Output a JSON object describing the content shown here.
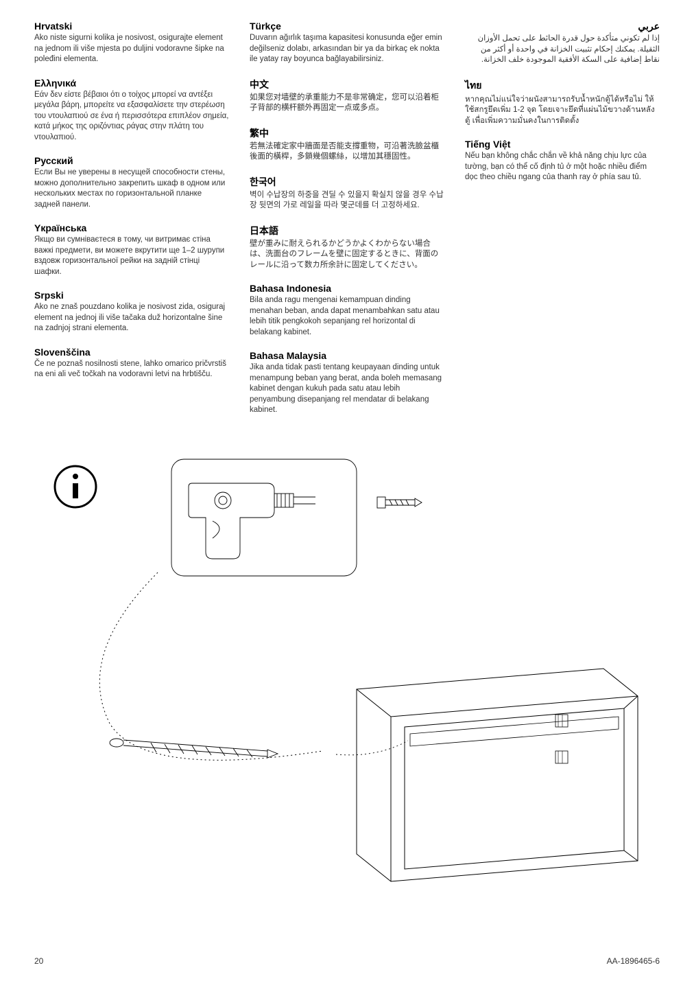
{
  "columns": [
    [
      {
        "title": "Hrvatski",
        "text": "Ako niste sigurni kolika je nosivost, osigurajte element na jednom ili više mjesta po duljini vodoravne šipke na poleđini elementa."
      },
      {
        "title": "Ελληνικά",
        "text": "Εάν δεν είστε βέβαιοι ότι ο τοίχος μπορεί να αντέξει μεγάλα βάρη, μπορείτε να εξασφαλίσετε την στερέωση του ντουλαπιού σε ένα ή περισσότερα επιπλέον σημεία, κατά μήκος της οριζόντιας ράγας στην πλάτη του ντουλαπιού."
      },
      {
        "title": "Русский",
        "text": "Если Вы не уверены в несущей способности стены, можно дополнительно закрепить шкаф в одном или нескольких местах по горизонтальной планке задней панели."
      },
      {
        "title": "Yкраїнська",
        "text": "Якщо ви сумніваєтеся в тому, чи витримає стіна важкі предмети, ви можете вкрутити ще 1–2 шурупи вздовж горизонтальної рейки на задній стінці шафки."
      },
      {
        "title": "Srpski",
        "text": "Ako ne znaš pouzdano kolika je nosivost zida, osiguraj element na jednoj ili više tačaka duž horizontalne šine na zadnjoj strani elementa."
      },
      {
        "title": "Slovenščina",
        "text": "Če ne poznaš nosilnosti stene, lahko omarico pričvrstiš na eni ali več točkah na vodoravni letvi na hrbtišču."
      }
    ],
    [
      {
        "title": "Türkçe",
        "text": "Duvarın ağırlık taşıma kapasitesi konusunda eğer emin değilseniz dolabı, arkasından bir ya da birkaç ek nokta ile yatay ray boyunca bağlayabilirsiniz."
      },
      {
        "title": "中文",
        "text": "如果您对墙壁的承重能力不是非常确定，您可以沿着柜子背部的横杆额外再固定一点或多点。"
      },
      {
        "title": "繁中",
        "text": "若無法確定家中牆面是否能支撐重物，可沿著洗臉盆櫃後面的橫桿，多鎖幾個螺絲，以增加其穩固性。"
      },
      {
        "title": "한국어",
        "text": "벽이 수납장의 하중을 견딜 수 있을지 확실치 않을 경우 수납장 뒷면의 가로 레일을 따라 몇군데를 더 고정하세요."
      },
      {
        "title": "日本語",
        "text": "壁が重みに耐えられるかどうかよくわからない場合は、洗面台のフレームを壁に固定するときに、背面のレールに沿って数カ所余計に固定してください。"
      },
      {
        "title": "Bahasa Indonesia",
        "text": "Bila anda ragu mengenai kemampuan dinding menahan beban, anda dapat menambahkan satu atau lebih titik pengkokoh sepanjang rel horizontal di belakang kabinet."
      },
      {
        "title": "Bahasa Malaysia",
        "text": "Jika anda tidak pasti tentang keupayaan dinding untuk menampung beban yang berat, anda boleh memasang kabinet dengan kukuh pada satu atau lebih penyambung disepanjang rel mendatar di belakang kabinet."
      }
    ],
    [
      {
        "title": "عربي",
        "text": "إذا لم تكوني متأكدة حول قدرة الحائط على تحمل الأوزان الثقيلة. يمكنك إحكام تثبيت الخزانة في واحدة أو أكثر من نقاط إضافية على السكة الأفقية الموجودة خلف الخزانة.",
        "rtl": true
      },
      {
        "title": "ไทย",
        "text": "หากคุณไม่แน่ใจว่าผนังสามารถรับน้ำหนักตู้ได้หรือไม่ ให้ใช้สกรูยึดเพิ่ม 1-2 จุด โดยเจาะยึดที่แผ่นไม้ขวางด้านหลังตู้ เพื่อเพิ่มความมั่นคงในการติดตั้ง"
      },
      {
        "title": "Tiếng Việt",
        "text": "Nếu bạn không chắc chắn về khả năng chịu lực của tường, bạn có thể cố định tủ ở một hoặc nhiều điểm dọc theo chiều ngang của thanh ray ở phía sau tủ."
      }
    ]
  ],
  "footer": {
    "page": "20",
    "code": "AA-1896465-6"
  },
  "svg": {
    "stroke": "#000000",
    "thin": "0.8",
    "med": "1.2"
  }
}
